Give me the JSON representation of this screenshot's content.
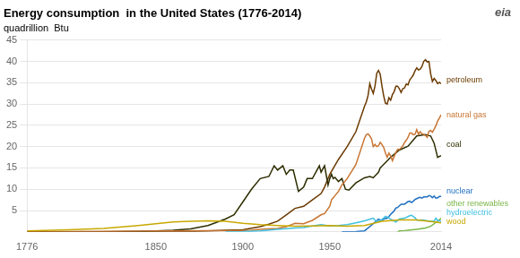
{
  "chart_data": {
    "type": "line",
    "title": "Energy consumption  in the United States (1776-2014)",
    "ylabel": "quadrillion  Btu",
    "logo": "eia",
    "xlim": [
      1776,
      2014
    ],
    "xticks": [
      1776,
      1850,
      1900,
      1950,
      2014
    ],
    "ylim": [
      0,
      45
    ],
    "yticks": [
      5,
      10,
      15,
      20,
      25,
      30,
      35,
      40,
      45
    ],
    "grid": "y",
    "series": [
      {
        "name": "wood",
        "color": "#c8a800",
        "x": [
          1776,
          1800,
          1820,
          1840,
          1860,
          1870,
          1880,
          1890,
          1900,
          1910,
          1920,
          1930,
          1940,
          1950,
          1960,
          1970,
          1980,
          1990,
          2000,
          2010,
          2014
        ],
        "values": [
          0.2,
          0.5,
          0.8,
          1.5,
          2.3,
          2.5,
          2.6,
          2.5,
          2.0,
          1.7,
          1.5,
          1.3,
          1.4,
          1.5,
          1.3,
          1.5,
          2.5,
          2.8,
          2.8,
          2.3,
          2.1
        ]
      },
      {
        "name": "hydroelectric",
        "color": "#40c0e0",
        "x": [
          1890,
          1900,
          1910,
          1920,
          1930,
          1935,
          1940,
          1945,
          1950,
          1955,
          1960,
          1965,
          1970,
          1975,
          1977,
          1980,
          1982,
          1983,
          1985,
          1988,
          1990,
          1993,
          1996,
          1997,
          1999,
          2000,
          2002,
          2003,
          2005,
          2007,
          2008,
          2010,
          2011,
          2012,
          2013,
          2014
        ],
        "values": [
          0.0,
          0.05,
          0.2,
          0.6,
          0.9,
          1.0,
          1.4,
          1.7,
          1.4,
          1.5,
          1.7,
          2.1,
          2.6,
          3.2,
          2.3,
          2.9,
          3.6,
          3.5,
          3.0,
          2.3,
          3.0,
          3.2,
          3.8,
          3.9,
          3.3,
          2.8,
          2.7,
          2.8,
          2.7,
          2.5,
          2.5,
          2.5,
          3.2,
          2.7,
          2.6,
          2.5
        ]
      },
      {
        "name": "other renewables",
        "color": "#7ab648",
        "x": [
          1989,
          1990,
          1993,
          1995,
          2000,
          2005,
          2008,
          2010,
          2012,
          2013,
          2014
        ],
        "values": [
          0.0,
          0.2,
          0.3,
          0.4,
          0.6,
          0.9,
          1.3,
          1.9,
          2.5,
          2.8,
          3.2
        ]
      },
      {
        "name": "nuclear",
        "color": "#1f6fbf",
        "x": [
          1957,
          1960,
          1965,
          1970,
          1975,
          1978,
          1979,
          1980,
          1981,
          1982,
          1983,
          1984,
          1985,
          1986,
          1987,
          1988,
          1989,
          1990,
          1991,
          1992,
          1993,
          1994,
          1995,
          1996,
          1997,
          1998,
          1999,
          2000,
          2001,
          2002,
          2003,
          2004,
          2005,
          2006,
          2007,
          2008,
          2009,
          2010,
          2011,
          2012,
          2013,
          2014
        ],
        "values": [
          0.0,
          0.01,
          0.04,
          0.24,
          1.9,
          3.0,
          2.8,
          2.7,
          3.0,
          3.1,
          3.2,
          3.6,
          4.1,
          4.5,
          4.9,
          5.6,
          5.7,
          6.1,
          6.5,
          6.5,
          6.5,
          6.8,
          7.1,
          7.2,
          6.9,
          7.2,
          7.6,
          7.8,
          8.0,
          8.1,
          7.9,
          8.2,
          8.2,
          8.2,
          8.5,
          8.4,
          8.0,
          8.4,
          7.9,
          8.0,
          8.3,
          8.3
        ]
      },
      {
        "name": "natural gas",
        "color": "#c87533",
        "x": [
          1776,
          1900,
          1905,
          1910,
          1915,
          1920,
          1925,
          1930,
          1935,
          1940,
          1945,
          1947,
          1950,
          1951,
          1952,
          1953,
          1955,
          1957,
          1960,
          1965,
          1970,
          1971,
          1972,
          1973,
          1974,
          1975,
          1976,
          1977,
          1978,
          1979,
          1980,
          1981,
          1982,
          1983,
          1984,
          1985,
          1986,
          1987,
          1988,
          1989,
          1990,
          1991,
          1992,
          1993,
          1994,
          1995,
          1996,
          1997,
          1998,
          1999,
          2000,
          2001,
          2002,
          2003,
          2004,
          2005,
          2006,
          2007,
          2008,
          2009,
          2010,
          2011,
          2012,
          2013,
          2014
        ],
        "values": [
          0.0,
          0.3,
          0.4,
          0.6,
          0.7,
          0.8,
          1.2,
          2.0,
          1.9,
          2.7,
          4.0,
          4.3,
          6.0,
          7.5,
          8.0,
          8.5,
          9.5,
          11.0,
          12.5,
          15.8,
          22.0,
          22.8,
          23.0,
          22.5,
          21.8,
          20.0,
          20.5,
          20.0,
          20.2,
          21.0,
          20.5,
          19.8,
          18.5,
          17.5,
          18.5,
          17.8,
          16.7,
          17.7,
          18.6,
          19.4,
          19.3,
          19.7,
          20.2,
          21.0,
          21.5,
          22.2,
          23.2,
          23.2,
          22.8,
          22.9,
          24.0,
          22.9,
          23.5,
          23.0,
          22.9,
          22.6,
          22.2,
          23.6,
          23.8,
          23.4,
          24.1,
          24.9,
          26.0,
          26.7,
          27.5
        ]
      },
      {
        "name": "coal",
        "color": "#2d2d00",
        "x": [
          1776,
          1820,
          1840,
          1850,
          1860,
          1870,
          1880,
          1890,
          1895,
          1900,
          1905,
          1910,
          1915,
          1918,
          1920,
          1923,
          1925,
          1927,
          1929,
          1932,
          1935,
          1937,
          1940,
          1944,
          1945,
          1947,
          1949,
          1950,
          1951,
          1952,
          1953,
          1955,
          1957,
          1959,
          1961,
          1965,
          1970,
          1973,
          1975,
          1978,
          1979,
          1980,
          1985,
          1990,
          1995,
          2000,
          2005,
          2008,
          2010,
          2012,
          2014
        ],
        "values": [
          0.0,
          0.0,
          0.1,
          0.2,
          0.4,
          0.7,
          1.5,
          3.0,
          4.0,
          7.0,
          10.0,
          12.5,
          13.0,
          15.5,
          14.5,
          15.5,
          13.5,
          14.5,
          14.5,
          9.5,
          10.5,
          12.5,
          12.5,
          15.5,
          14.0,
          15.5,
          11.0,
          12.5,
          13.5,
          12.5,
          12.8,
          11.8,
          12.5,
          10.0,
          9.8,
          11.5,
          12.7,
          13.0,
          12.7,
          14.0,
          15.0,
          15.4,
          17.5,
          19.2,
          20.1,
          22.5,
          22.8,
          22.5,
          20.8,
          17.5,
          17.9
        ]
      },
      {
        "name": "petroleum",
        "color": "#6b3a00",
        "x": [
          1776,
          1860,
          1870,
          1880,
          1890,
          1900,
          1910,
          1915,
          1920,
          1925,
          1930,
          1935,
          1940,
          1945,
          1947,
          1950,
          1955,
          1960,
          1965,
          1970,
          1971,
          1972,
          1973,
          1974,
          1975,
          1976,
          1977,
          1978,
          1979,
          1980,
          1981,
          1982,
          1983,
          1984,
          1985,
          1986,
          1987,
          1988,
          1989,
          1990,
          1991,
          1992,
          1993,
          1994,
          1995,
          1996,
          1997,
          1998,
          1999,
          2000,
          2001,
          2002,
          2003,
          2004,
          2005,
          2006,
          2007,
          2008,
          2009,
          2010,
          2011,
          2012,
          2013,
          2014
        ],
        "values": [
          0.0,
          0.0,
          0.1,
          0.2,
          0.4,
          0.5,
          1.2,
          1.8,
          2.5,
          4.0,
          5.5,
          6.0,
          7.5,
          9.0,
          10.5,
          13.5,
          17.0,
          20.0,
          23.5,
          29.5,
          30.5,
          32.0,
          34.8,
          33.5,
          32.5,
          34.2,
          37.2,
          37.9,
          37.0,
          34.2,
          31.9,
          30.2,
          30.0,
          31.5,
          30.9,
          32.2,
          32.9,
          34.2,
          34.2,
          33.6,
          32.7,
          33.6,
          33.8,
          34.7,
          34.5,
          35.7,
          36.2,
          36.8,
          37.8,
          38.5,
          38.0,
          38.2,
          38.8,
          40.0,
          40.4,
          39.9,
          40.0,
          37.1,
          35.3,
          36.0,
          35.5,
          34.8,
          35.1,
          34.8
        ]
      }
    ],
    "annotations": [
      {
        "text": "petroleum",
        "y": 35.5,
        "color": "#6b3a00"
      },
      {
        "text": "natural gas",
        "y": 27.5,
        "color": "#c87533"
      },
      {
        "text": "coal",
        "y": 20.5,
        "color": "#2d2d00"
      },
      {
        "text": "nuclear",
        "y": 9.5,
        "color": "#1f6fbf"
      },
      {
        "text": "other renewables",
        "y": 6.5,
        "color": "#7ab648"
      },
      {
        "text": "hydroelectric",
        "y": 4.5,
        "color": "#40c0e0"
      },
      {
        "text": "wood",
        "y": 2.3,
        "color": "#c8a800"
      }
    ]
  }
}
